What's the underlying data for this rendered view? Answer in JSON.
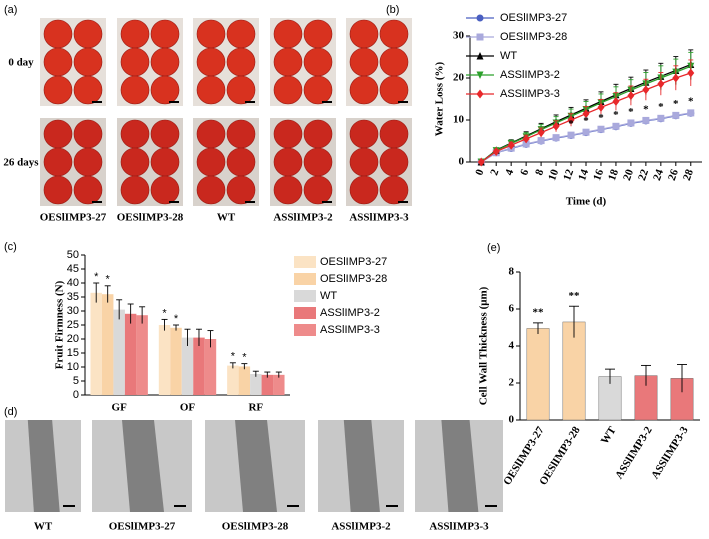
{
  "photos": {
    "panel": "(a)",
    "rows": [
      "0 day",
      "26 days"
    ],
    "columns": [
      "OESlIMP3-27",
      "OESlIMP3-28",
      "WT",
      "ASSlIMP3-2",
      "ASSlIMP3-3"
    ]
  },
  "micrographs": {
    "panel": "(d)",
    "labels": [
      "WT",
      "OESlIMP3-27",
      "OESlIMP3-28",
      "ASSlIMP3-2",
      "ASSlIMP3-3"
    ]
  },
  "chart_data": [
    {
      "type": "line",
      "panel": "(b)",
      "x_label": "Time (d)",
      "y_label": "Water Loss (%)",
      "x": [
        0,
        2,
        4,
        6,
        8,
        10,
        12,
        14,
        16,
        18,
        20,
        22,
        24,
        26,
        28
      ],
      "xlim": [
        -1.5,
        29.5
      ],
      "xticks": [
        0,
        2,
        4,
        6,
        8,
        10,
        12,
        14,
        16,
        18,
        20,
        22,
        24,
        26,
        28
      ],
      "ylim": [
        0,
        30
      ],
      "yticks": [
        0,
        10,
        20,
        30
      ],
      "series": [
        {
          "name": "OESlIMP3-27",
          "color": "#4a5fc1",
          "marker": "circle",
          "values": [
            0,
            2.2,
            3.2,
            4.2,
            5.0,
            5.7,
            6.3,
            7.0,
            7.7,
            8.4,
            9.2,
            9.8,
            10.3,
            11.0,
            11.6
          ],
          "errors": [
            0,
            0.3,
            0.4,
            0.4,
            0.4,
            0.5,
            0.5,
            0.5,
            0.5,
            0.5,
            0.5,
            0.5,
            0.5,
            0.6,
            0.6
          ]
        },
        {
          "name": "OESlIMP3-28",
          "color": "#a9a9dc",
          "marker": "square",
          "values": [
            0,
            2.2,
            3.3,
            4.3,
            5.1,
            5.8,
            6.4,
            7.1,
            7.8,
            8.5,
            9.3,
            9.9,
            10.4,
            11.1,
            11.7
          ],
          "errors": [
            0,
            0.3,
            0.4,
            0.4,
            0.4,
            0.5,
            0.5,
            0.5,
            0.5,
            0.5,
            0.5,
            0.5,
            0.5,
            0.6,
            0.6
          ]
        },
        {
          "name": "WT",
          "color": "#000000",
          "marker": "triangle",
          "values": [
            0,
            2.8,
            4.5,
            6.2,
            7.9,
            9.6,
            11.2,
            12.8,
            14.4,
            16.0,
            17.5,
            19.0,
            20.4,
            21.8,
            23.2
          ],
          "errors": [
            0,
            0.5,
            0.8,
            1.0,
            1.3,
            1.6,
            1.8,
            2.0,
            2.3,
            2.5,
            2.7,
            2.9,
            3.1,
            3.3,
            3.5
          ]
        },
        {
          "name": "ASSlIMP3-2",
          "color": "#2ca02c",
          "marker": "triangle-down",
          "values": [
            0,
            2.7,
            4.4,
            6.0,
            7.7,
            9.3,
            10.9,
            12.5,
            14.1,
            15.6,
            17.1,
            18.6,
            20.0,
            21.4,
            22.8
          ],
          "errors": [
            0,
            0.5,
            0.8,
            1.0,
            1.2,
            1.5,
            1.7,
            1.9,
            2.1,
            2.3,
            2.5,
            2.7,
            2.9,
            3.1,
            3.3
          ]
        },
        {
          "name": "ASSlIMP3-3",
          "color": "#e8282b",
          "marker": "diamond",
          "values": [
            0,
            2.5,
            4.0,
            5.5,
            7.0,
            8.5,
            10.0,
            11.5,
            13.0,
            14.4,
            15.8,
            17.2,
            18.6,
            20.0,
            21.2
          ],
          "errors": [
            0,
            0.4,
            0.7,
            0.9,
            1.1,
            1.3,
            1.5,
            1.7,
            1.9,
            2.1,
            2.3,
            2.5,
            2.7,
            2.9,
            3.1
          ]
        }
      ],
      "significance": {
        "label": "*",
        "series": 0,
        "x": [
          12,
          14,
          16,
          18,
          20,
          22,
          24,
          26,
          28
        ]
      }
    },
    {
      "type": "bar",
      "panel": "(c)",
      "y_label": "Fruit Firmness (N)",
      "categories": [
        "GF",
        "OF",
        "RF"
      ],
      "ylim": [
        0,
        50
      ],
      "yticks": [
        0,
        5,
        10,
        15,
        20,
        25,
        30,
        35,
        40,
        45,
        50
      ],
      "series": [
        {
          "name": "OESlIMP3-27",
          "color": "#fbe3c4",
          "values": [
            36.5,
            25,
            10.5
          ],
          "errors": [
            3.5,
            2,
            1
          ]
        },
        {
          "name": "OESlIMP3-28",
          "color": "#f9d3a6",
          "values": [
            36,
            24,
            10.2
          ],
          "errors": [
            3,
            1,
            1
          ]
        },
        {
          "name": "WT",
          "color": "#d9d9d9",
          "values": [
            30.5,
            20.5,
            7.5
          ],
          "errors": [
            3.5,
            3,
            1
          ]
        },
        {
          "name": "ASSlIMP3-2",
          "color": "#e9787a",
          "values": [
            29,
            20.5,
            7.2
          ],
          "errors": [
            3.5,
            3,
            1
          ]
        },
        {
          "name": "ASSlIMP3-3",
          "color": "#ee8b8b",
          "values": [
            28.5,
            20,
            7.2
          ],
          "errors": [
            3,
            3,
            1
          ]
        }
      ],
      "significance": {
        "label": "*",
        "series": [
          0,
          1
        ]
      }
    },
    {
      "type": "bar",
      "panel": "(e)",
      "y_label": "Cell Wall Thickness (μm)",
      "categories": [
        "OESlIMP3-27",
        "OESlIMP3-28",
        "WT",
        "ASSlIMP3-2",
        "ASSlIMP3-3"
      ],
      "values": [
        4.95,
        5.3,
        2.35,
        2.4,
        2.25
      ],
      "errors": [
        0.3,
        0.85,
        0.4,
        0.55,
        0.75
      ],
      "colors": [
        "#f9d3a6",
        "#f9d3a6",
        "#d9d9d9",
        "#e9787a",
        "#e9787a"
      ],
      "ylim": [
        0,
        8
      ],
      "yticks": [
        0,
        2,
        4,
        6,
        8
      ],
      "significance": {
        "label": "**",
        "indices": [
          0,
          1
        ]
      }
    }
  ]
}
